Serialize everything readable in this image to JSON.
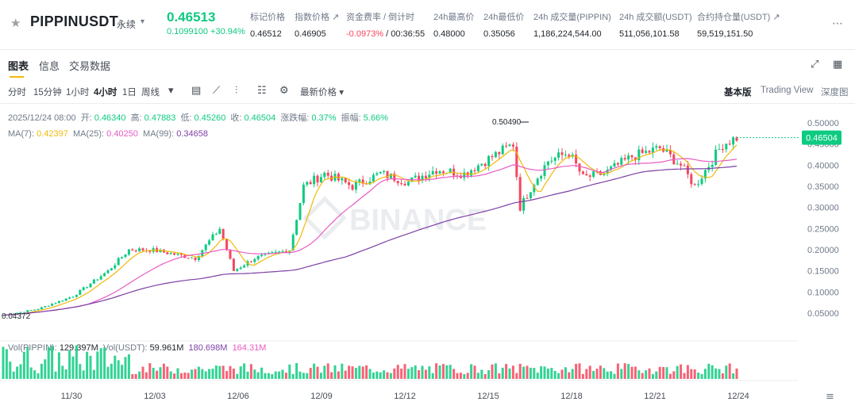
{
  "header": {
    "symbol": "PIPPINUSDT",
    "contract_type": "永续",
    "last_price": "0.46513",
    "change": "0.1099100 +30.94%",
    "stats": [
      {
        "label": "标记价格",
        "value": "0.46512"
      },
      {
        "label": "指数价格 ↗",
        "value": "0.46905"
      },
      {
        "label": "资金费率 / 倒计时",
        "value_red": "-0.0973%",
        "value": "/ 00:36:55"
      },
      {
        "label": "24h最高价",
        "value": "0.48000"
      },
      {
        "label": "24h最低价",
        "value": "0.35056"
      },
      {
        "label": "24h 成交量(PIPPIN)",
        "value": "1,186,224,544.00"
      },
      {
        "label": "24h 成交额(USDT)",
        "value": "511,056,101.58"
      },
      {
        "label": "合约持仓量(USDT) ↗",
        "value": "59,519,151.50"
      }
    ]
  },
  "tabs": [
    "图表",
    "信息",
    "交易数据"
  ],
  "intervals": [
    "分时",
    "15分钟",
    "1小时",
    "4小时",
    "1日",
    "周线"
  ],
  "price_type": "最新价格 ▾",
  "views": [
    "基本版",
    "Trading View",
    "深度图"
  ],
  "ohlc": {
    "date": "2025/12/24 08:00",
    "open_label": "开:",
    "open": "0.46340",
    "high_label": "高:",
    "high": "0.47883",
    "low_label": "低:",
    "low": "0.45260",
    "close_label": "收:",
    "close": "0.46504",
    "chg_label": "涨跌幅:",
    "chg": "0.37%",
    "amp_label": "振幅:",
    "amp": "5.66%"
  },
  "ma": {
    "ma7_label": "MA(7):",
    "ma7": "0.42397",
    "ma25_label": "MA(25):",
    "ma25": "0.40250",
    "ma99_label": "MA(99):",
    "ma99": "0.34658"
  },
  "vol": {
    "vol_label": "Vol(PIPPIN):",
    "vol": "129.397M",
    "vol_usdt_label": "Vol(USDT):",
    "vol_usdt": "59.961M",
    "v1": "180.698M",
    "v2": "164.31M"
  },
  "colors": {
    "up": "#0ecb81",
    "down": "#f6465d",
    "ma7": "#f0b90b",
    "ma25": "#e85bc4",
    "ma99": "#7d3fa6"
  },
  "chart_data": {
    "type": "candlestick",
    "y_ticks": [
      "0.50000",
      "0.45000",
      "0.40000",
      "0.35000",
      "0.30000",
      "0.25000",
      "0.20000",
      "0.15000",
      "0.10000",
      "0.05000"
    ],
    "x_ticks": [
      "11/30",
      "12/03",
      "12/06",
      "12/09",
      "12/12",
      "12/15",
      "12/18",
      "12/21",
      "12/24"
    ],
    "last_price_label": "0.46504",
    "max_label": "0.50490",
    "min_label": "0.04372",
    "watermark": "BINANCE"
  }
}
